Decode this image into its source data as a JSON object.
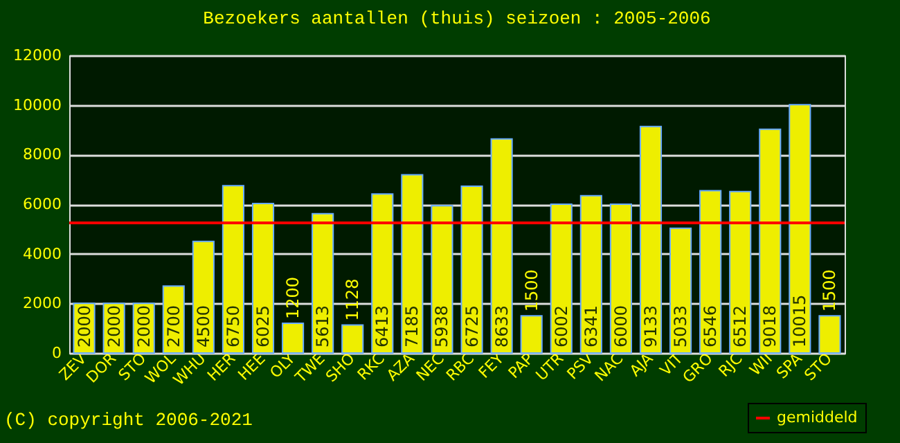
{
  "chart_data": {
    "type": "bar",
    "title": "Bezoekers aantallen (thuis) seizoen : 2005-2006",
    "categories": [
      "ZEV",
      "DOR",
      "STO",
      "WOL",
      "WHU",
      "HER",
      "HEE",
      "OLY",
      "TWE",
      "SHO",
      "RKC",
      "AZA",
      "NEC",
      "RBC",
      "FEY",
      "PAP",
      "UTR",
      "PSV",
      "NAC",
      "AJA",
      "VIT",
      "GRO",
      "RJC",
      "WII",
      "SPA",
      "STO"
    ],
    "values": [
      2000,
      2000,
      2000,
      2700,
      4500,
      6750,
      6025,
      1200,
      5613,
      1128,
      6413,
      7185,
      5938,
      6725,
      8633,
      1500,
      6002,
      6341,
      6000,
      9133,
      5033,
      6546,
      6512,
      9018,
      10015,
      1500
    ],
    "color": "#eeee00",
    "ylim": [
      0,
      12000
    ],
    "yticks": [
      0,
      2000,
      4000,
      6000,
      8000,
      10000,
      12000
    ],
    "grid": "y",
    "data_labels": true,
    "ref_lines": [
      {
        "axis": "y",
        "value": 5246,
        "label": "gemiddeld",
        "color": "#ff0000"
      }
    ],
    "legend": "bottom right",
    "annotations": [
      "(C) copyright 2006-2021"
    ]
  }
}
